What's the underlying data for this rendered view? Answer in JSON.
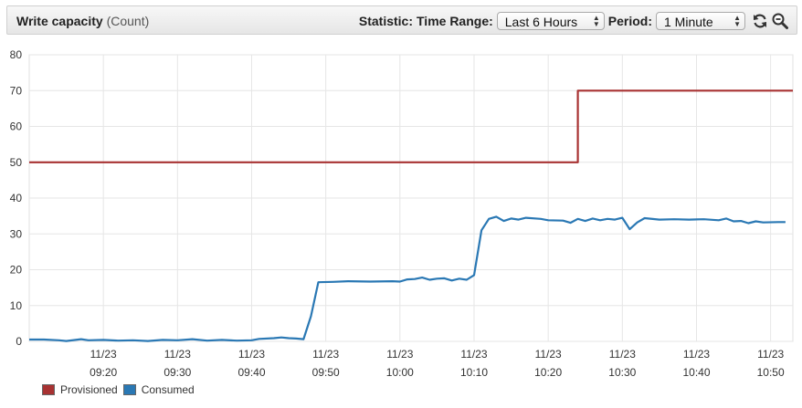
{
  "header": {
    "title": "Write capacity",
    "unit": "(Count)",
    "statistic_label": "Statistic:",
    "time_range_label": "Time Range:",
    "time_range_value": "Last 6 Hours",
    "period_label": "Period:",
    "period_value": "1 Minute",
    "refresh_icon": "refresh-icon",
    "zoom_icon": "zoom-icon"
  },
  "chart_data": {
    "type": "line",
    "ylim": [
      0,
      80
    ],
    "yticks": [
      0,
      10,
      20,
      30,
      40,
      50,
      60,
      70,
      80
    ],
    "xlim": [
      "09:10",
      "10:53"
    ],
    "xticks": [
      {
        "date": "11/23",
        "time": "09:20"
      },
      {
        "date": "11/23",
        "time": "09:30"
      },
      {
        "date": "11/23",
        "time": "09:40"
      },
      {
        "date": "11/23",
        "time": "09:50"
      },
      {
        "date": "11/23",
        "time": "10:00"
      },
      {
        "date": "11/23",
        "time": "10:10"
      },
      {
        "date": "11/23",
        "time": "10:20"
      },
      {
        "date": "11/23",
        "time": "10:30"
      },
      {
        "date": "11/23",
        "time": "10:40"
      },
      {
        "date": "11/23",
        "time": "10:50"
      }
    ],
    "grid": true,
    "legend": "bottom-left",
    "series": [
      {
        "name": "Provisioned",
        "color": "#a83232",
        "step": true,
        "points": [
          [
            "09:10",
            50
          ],
          [
            "10:24",
            50
          ],
          [
            "10:24",
            70
          ],
          [
            "10:53",
            70
          ]
        ]
      },
      {
        "name": "Consumed",
        "color": "#2a78b4",
        "points": [
          [
            "09:10",
            0.5
          ],
          [
            "09:12",
            0.5
          ],
          [
            "09:14",
            0.3
          ],
          [
            "09:15",
            0.1
          ],
          [
            "09:17",
            0.6
          ],
          [
            "09:18",
            0.3
          ],
          [
            "09:20",
            0.4
          ],
          [
            "09:22",
            0.2
          ],
          [
            "09:24",
            0.3
          ],
          [
            "09:26",
            0.1
          ],
          [
            "09:28",
            0.4
          ],
          [
            "09:30",
            0.3
          ],
          [
            "09:32",
            0.6
          ],
          [
            "09:34",
            0.2
          ],
          [
            "09:36",
            0.4
          ],
          [
            "09:38",
            0.2
          ],
          [
            "09:40",
            0.3
          ],
          [
            "09:41",
            0.7
          ],
          [
            "09:43",
            0.9
          ],
          [
            "09:44",
            1.1
          ],
          [
            "09:45",
            0.9
          ],
          [
            "09:46",
            0.8
          ],
          [
            "09:47",
            0.6
          ],
          [
            "09:48",
            7.0
          ],
          [
            "09:49",
            16.5
          ],
          [
            "09:51",
            16.6
          ],
          [
            "09:53",
            16.8
          ],
          [
            "09:56",
            16.7
          ],
          [
            "09:59",
            16.8
          ],
          [
            "10:00",
            16.7
          ],
          [
            "10:01",
            17.3
          ],
          [
            "10:02",
            17.4
          ],
          [
            "10:03",
            17.8
          ],
          [
            "10:04",
            17.2
          ],
          [
            "10:05",
            17.5
          ],
          [
            "10:06",
            17.6
          ],
          [
            "10:07",
            17.0
          ],
          [
            "10:08",
            17.5
          ],
          [
            "10:09",
            17.2
          ],
          [
            "10:10",
            18.5
          ],
          [
            "10:11",
            31.0
          ],
          [
            "10:12",
            34.2
          ],
          [
            "10:13",
            34.8
          ],
          [
            "10:14",
            33.6
          ],
          [
            "10:15",
            34.3
          ],
          [
            "10:16",
            34.0
          ],
          [
            "10:17",
            34.5
          ],
          [
            "10:19",
            34.2
          ],
          [
            "10:20",
            33.8
          ],
          [
            "10:22",
            33.7
          ],
          [
            "10:23",
            33.1
          ],
          [
            "10:24",
            34.2
          ],
          [
            "10:25",
            33.6
          ],
          [
            "10:26",
            34.3
          ],
          [
            "10:27",
            33.8
          ],
          [
            "10:28",
            34.2
          ],
          [
            "10:29",
            34.0
          ],
          [
            "10:30",
            34.5
          ],
          [
            "10:31",
            31.3
          ],
          [
            "10:32",
            33.2
          ],
          [
            "10:33",
            34.4
          ],
          [
            "10:35",
            34.0
          ],
          [
            "10:37",
            34.1
          ],
          [
            "10:39",
            34.0
          ],
          [
            "10:41",
            34.1
          ],
          [
            "10:43",
            33.8
          ],
          [
            "10:44",
            34.3
          ],
          [
            "10:45",
            33.5
          ],
          [
            "10:46",
            33.6
          ],
          [
            "10:47",
            33.0
          ],
          [
            "10:48",
            33.5
          ],
          [
            "10:49",
            33.2
          ],
          [
            "10:51",
            33.3
          ],
          [
            "10:52",
            33.3
          ]
        ]
      }
    ]
  }
}
